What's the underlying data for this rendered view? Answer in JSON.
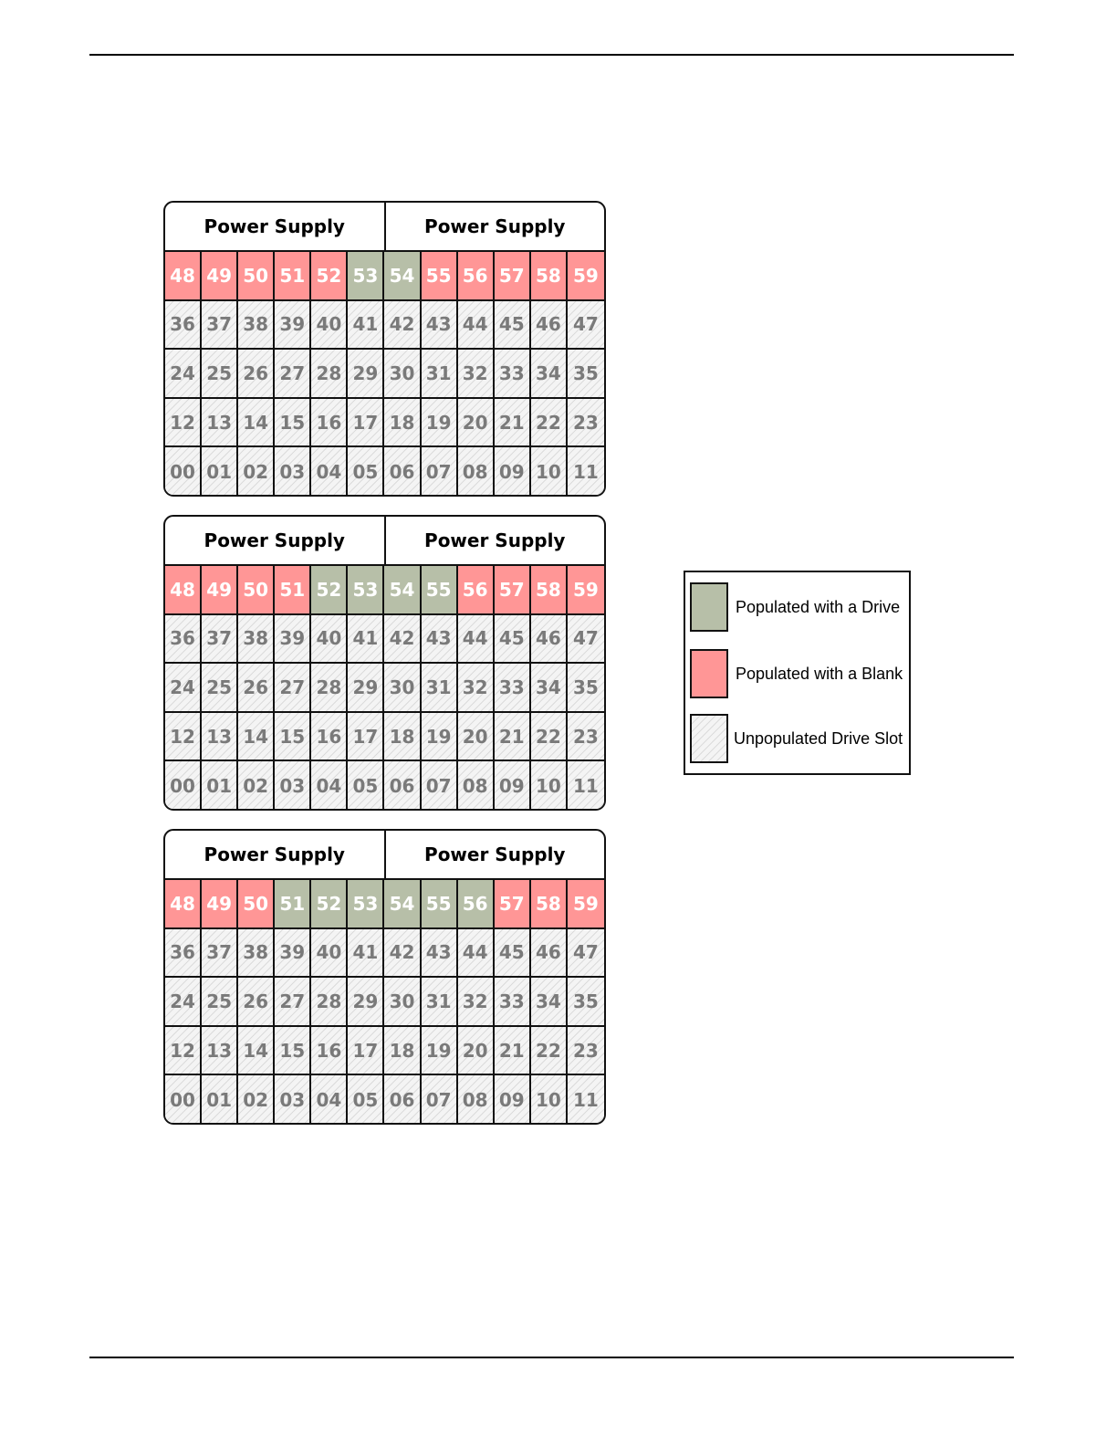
{
  "power_supply_label": "Power Supply",
  "colors": {
    "drive": "#b7bfa8",
    "blank": "#ff9696",
    "unpopulated": "#f4f4f4"
  },
  "enclosures": [
    {
      "power_supplies": [
        "Power Supply",
        "Power Supply"
      ],
      "rows": [
        [
          "48",
          "49",
          "50",
          "51",
          "52",
          "53",
          "54",
          "55",
          "56",
          "57",
          "58",
          "59"
        ],
        [
          "36",
          "37",
          "38",
          "39",
          "40",
          "41",
          "42",
          "43",
          "44",
          "45",
          "46",
          "47"
        ],
        [
          "24",
          "25",
          "26",
          "27",
          "28",
          "29",
          "30",
          "31",
          "32",
          "33",
          "34",
          "35"
        ],
        [
          "12",
          "13",
          "14",
          "15",
          "16",
          "17",
          "18",
          "19",
          "20",
          "21",
          "22",
          "23"
        ],
        [
          "00",
          "01",
          "02",
          "03",
          "04",
          "05",
          "06",
          "07",
          "08",
          "09",
          "10",
          "11"
        ]
      ],
      "drives": [
        "53",
        "54"
      ],
      "blanks": [
        "48",
        "49",
        "50",
        "51",
        "52",
        "55",
        "56",
        "57",
        "58",
        "59"
      ]
    },
    {
      "power_supplies": [
        "Power Supply",
        "Power Supply"
      ],
      "rows": [
        [
          "48",
          "49",
          "50",
          "51",
          "52",
          "53",
          "54",
          "55",
          "56",
          "57",
          "58",
          "59"
        ],
        [
          "36",
          "37",
          "38",
          "39",
          "40",
          "41",
          "42",
          "43",
          "44",
          "45",
          "46",
          "47"
        ],
        [
          "24",
          "25",
          "26",
          "27",
          "28",
          "29",
          "30",
          "31",
          "32",
          "33",
          "34",
          "35"
        ],
        [
          "12",
          "13",
          "14",
          "15",
          "16",
          "17",
          "18",
          "19",
          "20",
          "21",
          "22",
          "23"
        ],
        [
          "00",
          "01",
          "02",
          "03",
          "04",
          "05",
          "06",
          "07",
          "08",
          "09",
          "10",
          "11"
        ]
      ],
      "drives": [
        "52",
        "53",
        "54",
        "55"
      ],
      "blanks": [
        "48",
        "49",
        "50",
        "51",
        "56",
        "57",
        "58",
        "59"
      ]
    },
    {
      "power_supplies": [
        "Power Supply",
        "Power Supply"
      ],
      "rows": [
        [
          "48",
          "49",
          "50",
          "51",
          "52",
          "53",
          "54",
          "55",
          "56",
          "57",
          "58",
          "59"
        ],
        [
          "36",
          "37",
          "38",
          "39",
          "40",
          "41",
          "42",
          "43",
          "44",
          "45",
          "46",
          "47"
        ],
        [
          "24",
          "25",
          "26",
          "27",
          "28",
          "29",
          "30",
          "31",
          "32",
          "33",
          "34",
          "35"
        ],
        [
          "12",
          "13",
          "14",
          "15",
          "16",
          "17",
          "18",
          "19",
          "20",
          "21",
          "22",
          "23"
        ],
        [
          "00",
          "01",
          "02",
          "03",
          "04",
          "05",
          "06",
          "07",
          "08",
          "09",
          "10",
          "11"
        ]
      ],
      "drives": [
        "51",
        "52",
        "53",
        "54",
        "55",
        "56"
      ],
      "blanks": [
        "48",
        "49",
        "50",
        "57",
        "58",
        "59"
      ]
    }
  ],
  "legend": {
    "items": [
      {
        "label": "Populated with a Drive",
        "kind": "drive"
      },
      {
        "label": "Populated with a Blank",
        "kind": "blank"
      },
      {
        "label": "Unpopulated Drive Slot",
        "kind": "unpopulated"
      }
    ]
  }
}
